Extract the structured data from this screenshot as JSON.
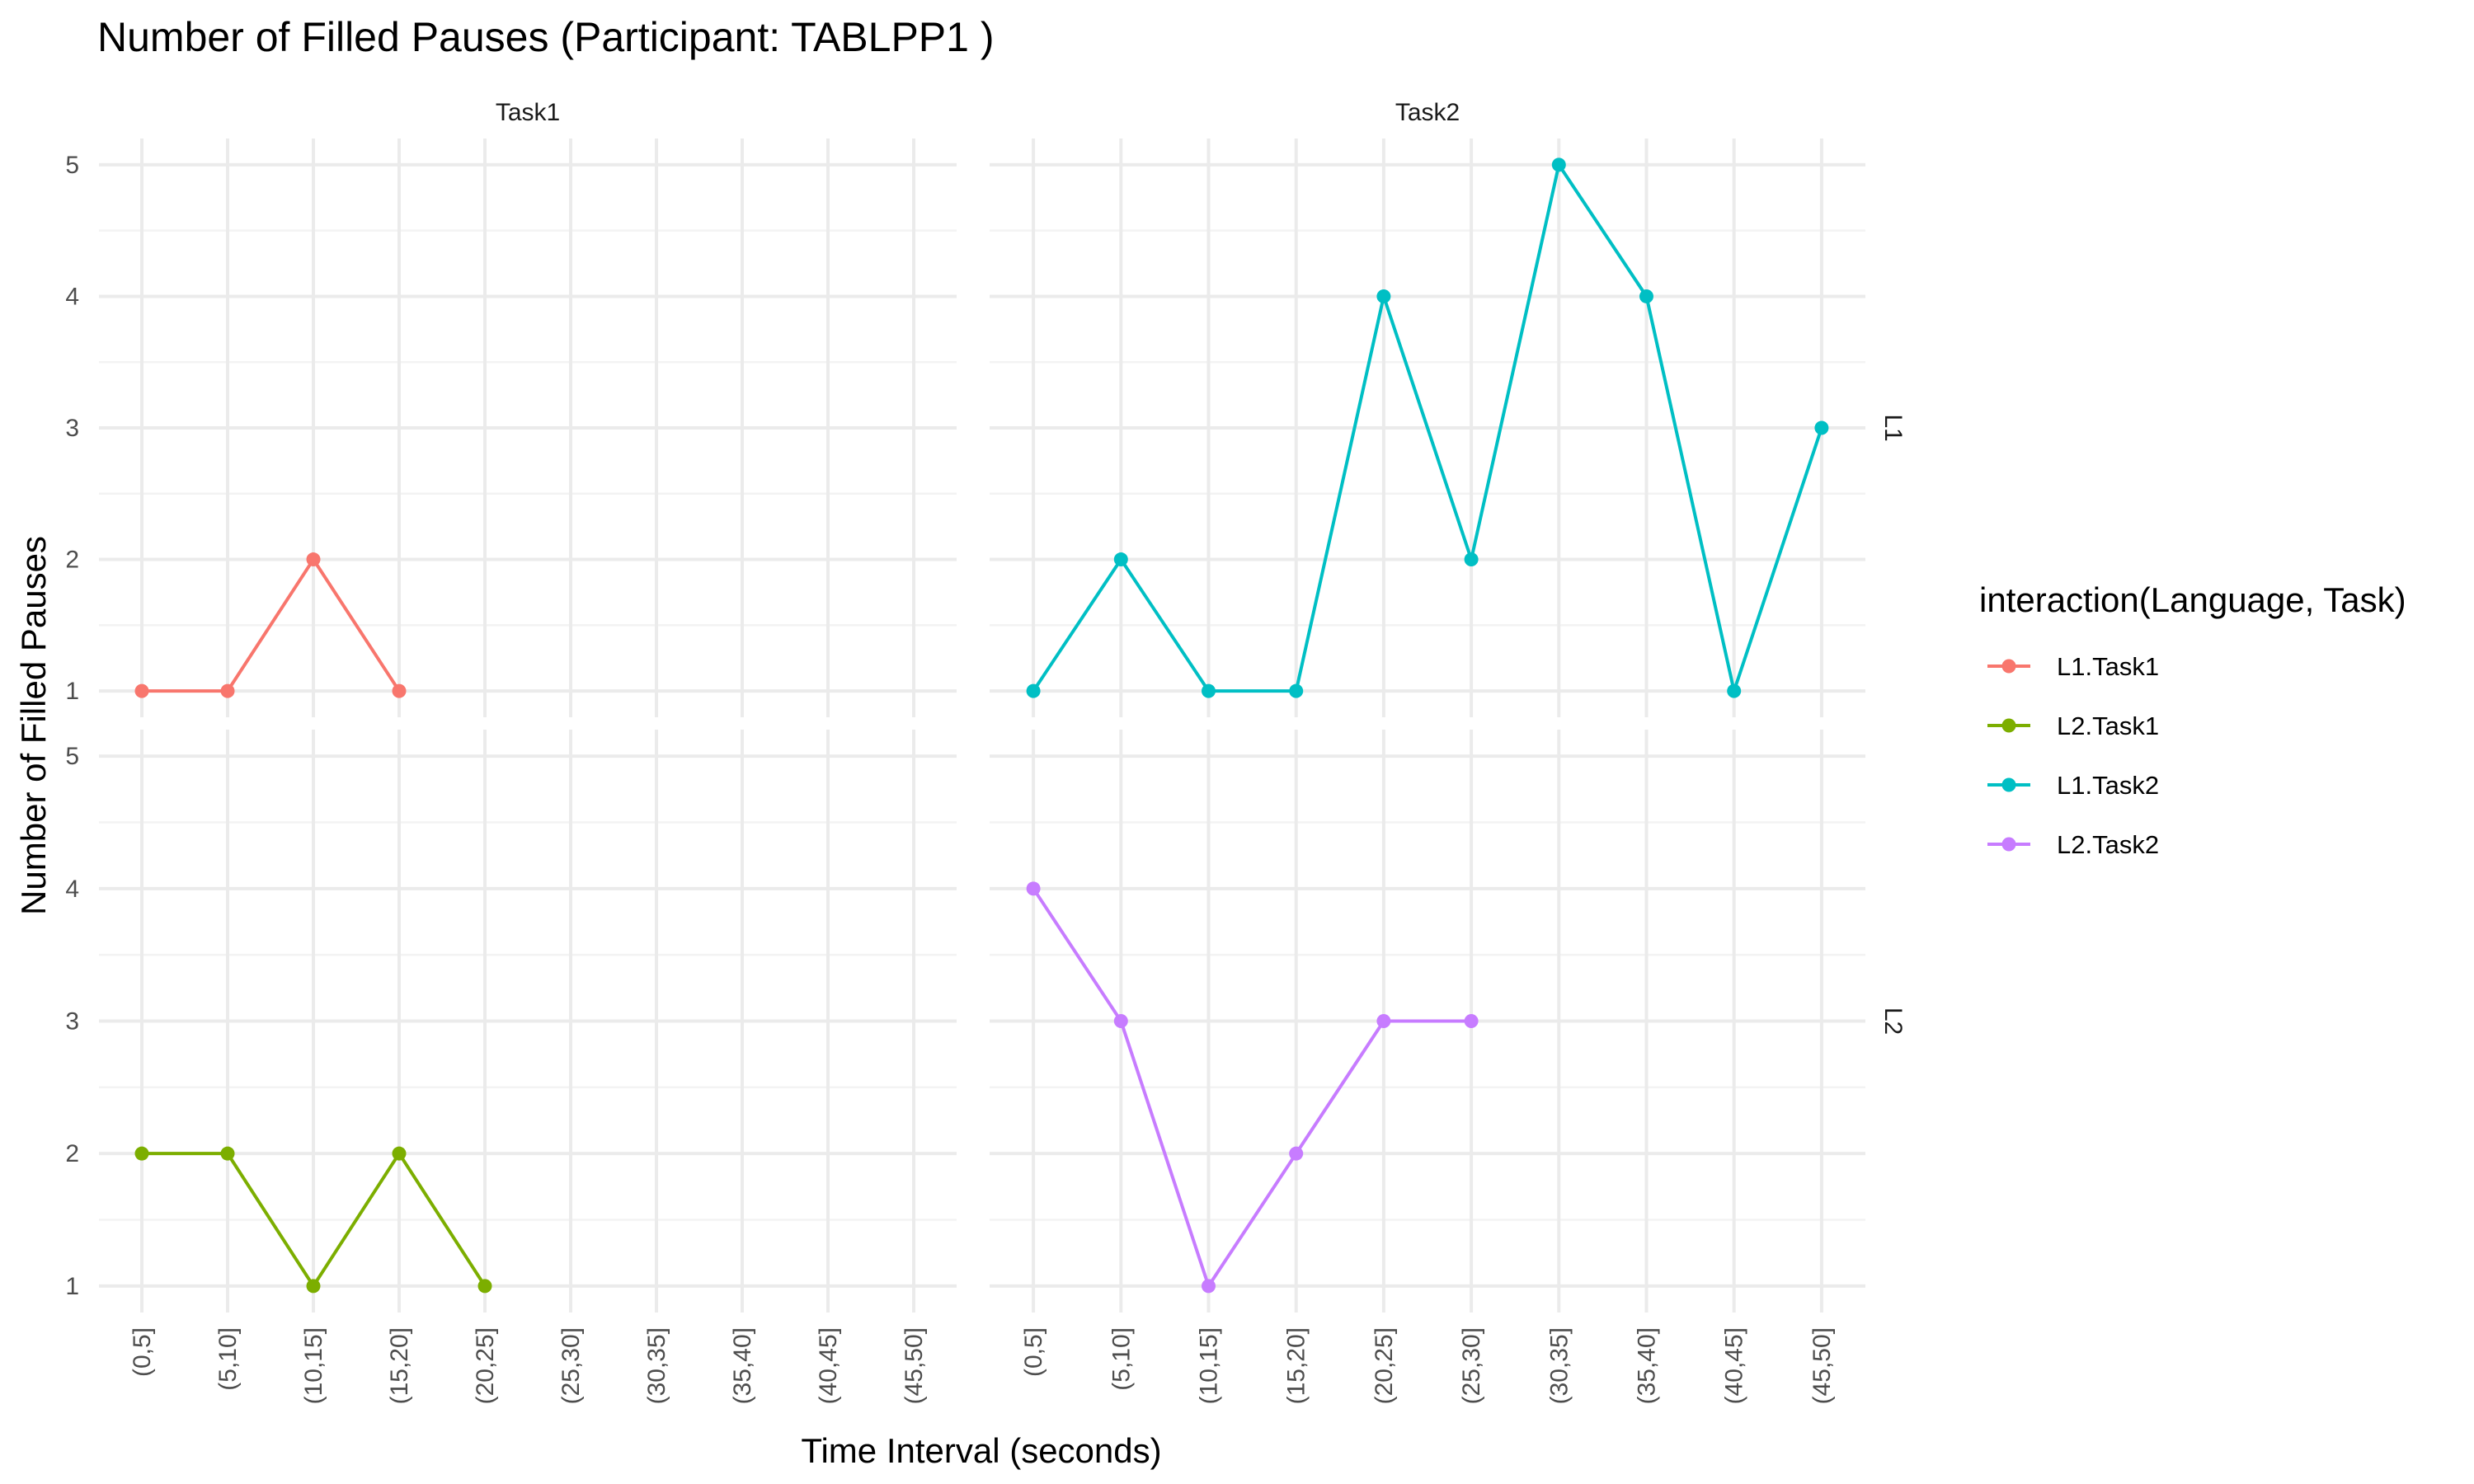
{
  "chart_data": {
    "type": "line",
    "title": "Number of Filled Pauses (Participant: TABLPP1 )",
    "xlabel": "Time Interval (seconds)",
    "ylabel": "Number of Filled Pauses",
    "categories": [
      "(0,5]",
      "(5,10]",
      "(10,15]",
      "(15,20]",
      "(20,25]",
      "(25,30]",
      "(30,35]",
      "(35,40]",
      "(40,45]",
      "(45,50]"
    ],
    "yticks": [
      "1",
      "2",
      "3",
      "4",
      "5"
    ],
    "ylim": [
      0.8,
      5.2
    ],
    "facet_columns": [
      "Task1",
      "Task2"
    ],
    "facet_rows": [
      "L1",
      "L2"
    ],
    "legend": {
      "title": "interaction(Language, Task)",
      "position": "right",
      "entries": [
        "L1.Task1",
        "L2.Task1",
        "L1.Task2",
        "L2.Task2"
      ]
    },
    "grid": true,
    "series": [
      {
        "name": "L1.Task1",
        "row": "L1",
        "column": "Task1",
        "color": "#F8766D",
        "x": [
          "(0,5]",
          "(5,10]",
          "(10,15]",
          "(15,20]"
        ],
        "values": [
          1,
          1,
          2,
          1
        ]
      },
      {
        "name": "L2.Task1",
        "row": "L2",
        "column": "Task1",
        "color": "#7CAE00",
        "x": [
          "(0,5]",
          "(5,10]",
          "(10,15]",
          "(15,20]",
          "(20,25]"
        ],
        "values": [
          2,
          2,
          1,
          2,
          1
        ]
      },
      {
        "name": "L1.Task2",
        "row": "L1",
        "column": "Task2",
        "color": "#00BFC4",
        "x": [
          "(0,5]",
          "(5,10]",
          "(10,15]",
          "(15,20]",
          "(20,25]",
          "(25,30]",
          "(30,35]",
          "(35,40]",
          "(40,45]",
          "(45,50]"
        ],
        "values": [
          1,
          2,
          1,
          1,
          4,
          2,
          5,
          4,
          1,
          3
        ]
      },
      {
        "name": "L2.Task2",
        "row": "L2",
        "column": "Task2",
        "color": "#C77CFF",
        "x": [
          "(0,5]",
          "(5,10]",
          "(10,15]",
          "(15,20]",
          "(20,25]",
          "(25,30]"
        ],
        "values": [
          4,
          3,
          1,
          2,
          3,
          3
        ]
      }
    ]
  }
}
